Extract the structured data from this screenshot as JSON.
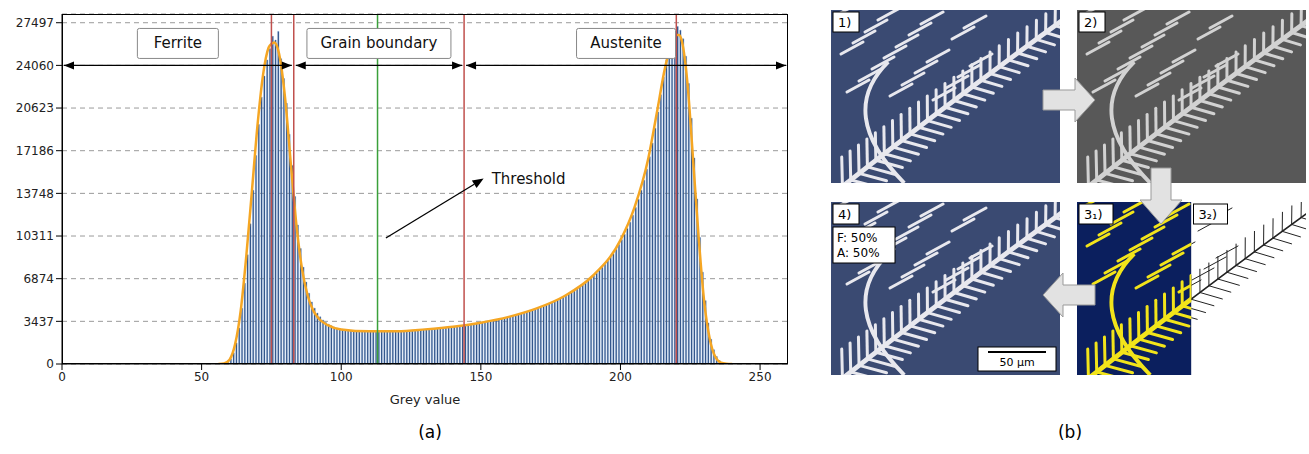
{
  "chart_data": {
    "type": "histogram",
    "xlabel": "Grey value",
    "bins": [
      58,
      59,
      60,
      61,
      62,
      63,
      64,
      65,
      66,
      67,
      68,
      69,
      70,
      71,
      72,
      73,
      74,
      75,
      76,
      77,
      78,
      79,
      80,
      81,
      82,
      83,
      84,
      85,
      86,
      87,
      88,
      89,
      90,
      91,
      92,
      93,
      94,
      95,
      96,
      97,
      98,
      99,
      100,
      101,
      102,
      103,
      104,
      105,
      106,
      107,
      108,
      109,
      110,
      111,
      112,
      113,
      114,
      115,
      116,
      117,
      118,
      119,
      120,
      121,
      122,
      123,
      124,
      125,
      126,
      127,
      128,
      129,
      130,
      131,
      132,
      133,
      134,
      135,
      136,
      137,
      138,
      139,
      140,
      141,
      142,
      143,
      144,
      145,
      146,
      147,
      148,
      149,
      150,
      151,
      152,
      153,
      154,
      155,
      156,
      157,
      158,
      159,
      160,
      161,
      162,
      163,
      164,
      165,
      166,
      167,
      168,
      169,
      170,
      171,
      172,
      173,
      174,
      175,
      176,
      177,
      178,
      179,
      180,
      181,
      182,
      183,
      184,
      185,
      186,
      187,
      188,
      189,
      190,
      191,
      192,
      193,
      194,
      195,
      196,
      197,
      198,
      199,
      200,
      201,
      202,
      203,
      204,
      205,
      206,
      207,
      208,
      209,
      210,
      211,
      212,
      213,
      214,
      215,
      216,
      217,
      218,
      219,
      220,
      221,
      222,
      223,
      224,
      225,
      226,
      227,
      228,
      229,
      230,
      231,
      232,
      233,
      234,
      235,
      236,
      237,
      238
    ],
    "counts": [
      60,
      150,
      400,
      900,
      1700,
      2900,
      4500,
      6500,
      8800,
      11300,
      14000,
      16800,
      19300,
      21500,
      23200,
      24500,
      25400,
      26400,
      26100,
      26800,
      24600,
      23000,
      21000,
      18500,
      16000,
      13500,
      11200,
      9300,
      7800,
      6600,
      5700,
      5000,
      4500,
      4100,
      3800,
      3550,
      3350,
      3200,
      3080,
      2980,
      2900,
      2840,
      2790,
      2760,
      2730,
      2710,
      2690,
      2670,
      2660,
      2650,
      2640,
      2630,
      2620,
      2620,
      2610,
      2610,
      2620,
      2620,
      2630,
      2630,
      2640,
      2650,
      2660,
      2670,
      2680,
      2690,
      2700,
      2720,
      2730,
      2750,
      2760,
      2780,
      2800,
      2820,
      2840,
      2860,
      2880,
      2900,
      2920,
      2950,
      2970,
      3000,
      3020,
      3050,
      3080,
      3110,
      3140,
      3170,
      3200,
      3240,
      3270,
      3310,
      3350,
      3390,
      3430,
      3470,
      3520,
      3560,
      3610,
      3660,
      3710,
      3760,
      3820,
      3870,
      3930,
      3990,
      4050,
      4120,
      4190,
      4260,
      4330,
      4410,
      4490,
      4570,
      4660,
      4750,
      4840,
      4940,
      5040,
      5150,
      5260,
      5380,
      5500,
      5630,
      5760,
      5900,
      6050,
      6200,
      6370,
      6540,
      6720,
      6910,
      7110,
      7320,
      7550,
      7790,
      8040,
      8310,
      8600,
      8910,
      9250,
      9620,
      10020,
      10450,
      10920,
      11430,
      11990,
      12600,
      13270,
      14000,
      14800,
      15700,
      16700,
      17800,
      19000,
      20300,
      21700,
      23100,
      24500,
      25600,
      26300,
      26700,
      27200,
      26900,
      26200,
      24800,
      22600,
      19800,
      16600,
      13300,
      10200,
      7400,
      5100,
      3300,
      2000,
      1150,
      600,
      280,
      120,
      40
    ],
    "color": "#1f3f73",
    "series": [
      {
        "type": "line",
        "color": "#f5a623",
        "x": [
          56,
          58,
          60,
          62,
          64,
          66,
          68,
          70,
          72,
          74,
          75,
          76,
          77,
          78,
          80,
          82,
          84,
          86,
          88,
          90,
          92,
          95,
          100,
          110,
          120,
          130,
          140,
          150,
          160,
          170,
          180,
          190,
          200,
          205,
          210,
          213,
          216,
          218,
          220,
          221,
          222,
          224,
          226,
          228,
          230,
          232,
          234,
          236,
          238,
          240
        ],
        "values": [
          0,
          50,
          350,
          1600,
          4300,
          8700,
          13900,
          19200,
          23300,
          25500,
          25800,
          25900,
          25600,
          24700,
          21200,
          16000,
          11100,
          7600,
          5500,
          4300,
          3650,
          3150,
          2780,
          2630,
          2640,
          2790,
          3000,
          3330,
          3800,
          4480,
          5480,
          7090,
          9980,
          12600,
          16600,
          20200,
          23900,
          25600,
          26500,
          26500,
          26000,
          22600,
          16500,
          10200,
          5000,
          2000,
          560,
          110,
          20,
          0
        ]
      }
    ],
    "xlim": [
      0,
      260
    ],
    "xticks": [
      0,
      50,
      100,
      150,
      200,
      250
    ],
    "ylim": [
      0,
      28200
    ],
    "yticks": [
      0,
      3437,
      6874,
      10311,
      13748,
      17186,
      20623,
      24060,
      27497
    ],
    "grid": true,
    "vlines": [
      {
        "x": 75,
        "color": "#c0504d"
      },
      {
        "x": 83,
        "color": "#c0504d"
      },
      {
        "x": 113,
        "color": "#3aa03a",
        "label": "Threshold"
      },
      {
        "x": 144,
        "color": "#c0504d"
      },
      {
        "x": 220,
        "color": "#c0504d"
      }
    ],
    "regions": [
      {
        "label": "Ferrite",
        "from": 0,
        "to": 83
      },
      {
        "label": "Grain boundary",
        "from": 83,
        "to": 144
      },
      {
        "label": "Austenite",
        "from": 144,
        "to": 260
      }
    ],
    "panel_label": "(a)"
  },
  "figure_b": {
    "panel_label": "(b)",
    "steps": [
      {
        "label": "1)"
      },
      {
        "label": "2)"
      },
      {
        "label": "3₁)"
      },
      {
        "label": "3₂)"
      },
      {
        "label": "4)",
        "fractions": [
          "F: 50%",
          "A: 50%"
        ],
        "scale_bar": "50 µm"
      }
    ]
  }
}
